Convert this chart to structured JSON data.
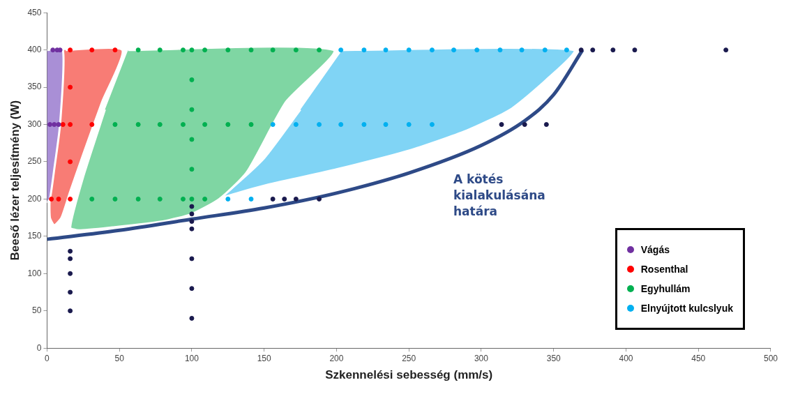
{
  "chart_data": {
    "type": "scatter",
    "xlabel": "Szkennelési sebesség (mm/s)",
    "ylabel": "Beeső lézer teljesítmény (W)",
    "xlim": [
      0,
      500
    ],
    "xticks": [
      0,
      50,
      100,
      150,
      200,
      250,
      300,
      350,
      400,
      450,
      500
    ],
    "ylim": [
      0,
      450
    ],
    "yticks": [
      0,
      50,
      100,
      150,
      200,
      250,
      300,
      350,
      400,
      450
    ],
    "grid": false,
    "legend": "bottom right",
    "marker": "circle",
    "series": [
      {
        "type": "area",
        "marker": "none",
        "color": "#a98fd6",
        "x": [
          0,
          11,
          9,
          5,
          2,
          0
        ],
        "values": [
          400,
          400,
          300,
          240,
          200,
          195
        ]
      },
      {
        "type": "area",
        "marker": "none",
        "color": "#f87c75",
        "x": [
          13,
          52,
          38,
          25,
          16,
          10,
          5,
          2,
          2,
          8,
          11
        ],
        "values": [
          400,
          400,
          330,
          260,
          210,
          175,
          165,
          175,
          210,
          300,
          400
        ]
      },
      {
        "type": "area",
        "marker": "none",
        "color": "#7fd6a3",
        "x": [
          56,
          198,
          165,
          138,
          119,
          100,
          80,
          45,
          22,
          16,
          25,
          40
        ],
        "values": [
          400,
          400,
          330,
          236,
          200,
          180,
          170,
          162,
          158,
          162,
          230,
          320
        ]
      },
      {
        "type": "area",
        "marker": "none",
        "color": "#80d4f5",
        "x": [
          204,
          364,
          345,
          320,
          290,
          250,
          200,
          150,
          118,
          113,
          125,
          150,
          175
        ],
        "values": [
          400,
          400,
          360,
          320,
          292,
          265,
          240,
          218,
          200,
          192,
          210,
          255,
          320
        ]
      },
      {
        "type": "line",
        "marker": "none",
        "name": "A kötés kialakulásána határa",
        "color": "#2e4a87",
        "x": [
          0,
          50,
          100,
          150,
          200,
          250,
          300,
          330,
          350,
          370
        ],
        "values": [
          146,
          158,
          173,
          188,
          208,
          235,
          272,
          305,
          340,
          400
        ]
      },
      {
        "name": "Vágás",
        "color": "#7030a0",
        "x": [
          4,
          7,
          9,
          2,
          5,
          8
        ],
        "values": [
          400,
          400,
          400,
          300,
          300,
          300
        ]
      },
      {
        "name": "Rosenthal",
        "color": "#ff0000",
        "x": [
          16,
          31,
          47,
          11,
          16,
          31,
          16,
          16,
          3,
          8,
          16
        ],
        "values": [
          400,
          400,
          400,
          300,
          300,
          300,
          350,
          250,
          200,
          200,
          200
        ]
      },
      {
        "name": "Egyhullám",
        "color": "#00b050",
        "x": [
          63,
          78,
          94,
          100,
          109,
          125,
          141,
          156,
          172,
          188,
          47,
          63,
          78,
          94,
          109,
          125,
          141,
          100,
          100,
          100,
          100,
          31,
          47,
          63,
          78,
          94,
          100,
          109
        ],
        "values": [
          400,
          400,
          400,
          400,
          400,
          400,
          400,
          400,
          400,
          400,
          300,
          300,
          300,
          300,
          300,
          300,
          300,
          360,
          320,
          280,
          240,
          200,
          200,
          200,
          200,
          200,
          200,
          200
        ]
      },
      {
        "name": "Elnyújtott kulcslyuk",
        "color": "#00b0f0",
        "x": [
          203,
          219,
          234,
          250,
          266,
          281,
          297,
          313,
          328,
          344,
          359,
          156,
          172,
          188,
          203,
          219,
          234,
          250,
          266,
          125,
          141
        ],
        "values": [
          400,
          400,
          400,
          400,
          400,
          400,
          400,
          400,
          400,
          400,
          400,
          300,
          300,
          300,
          300,
          300,
          300,
          300,
          300,
          200,
          200
        ]
      },
      {
        "color": "#1a1a4e",
        "x": [
          369,
          377,
          391,
          406,
          469,
          314,
          330,
          345,
          156,
          164,
          172,
          188,
          16,
          16,
          16,
          16,
          16,
          100,
          100,
          100,
          100,
          100,
          100,
          100
        ],
        "values": [
          400,
          400,
          400,
          400,
          400,
          300,
          300,
          300,
          200,
          200,
          200,
          200,
          130,
          120,
          100,
          75,
          50,
          190,
          180,
          170,
          160,
          120,
          80,
          40
        ]
      }
    ]
  }
}
